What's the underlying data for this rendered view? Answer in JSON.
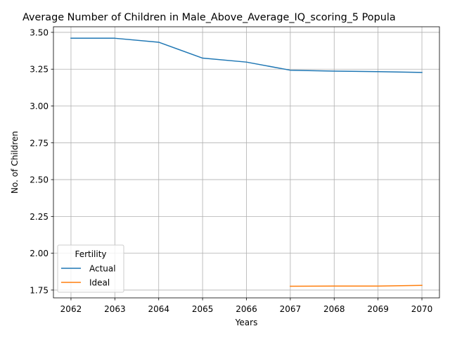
{
  "chart_data": {
    "type": "line",
    "title": "Average Number of Children in Male_Above_Average_IQ_scoring_5 Popula",
    "xlabel": "Years",
    "ylabel": "No. of Children",
    "x": [
      2062,
      2063,
      2064,
      2065,
      2066,
      2067,
      2068,
      2069,
      2070
    ],
    "x_ticks": [
      "2062",
      "2063",
      "2064",
      "2065",
      "2066",
      "2067",
      "2068",
      "2069",
      "2070"
    ],
    "y_ticks": [
      "1.75",
      "2.00",
      "2.25",
      "2.50",
      "2.75",
      "3.00",
      "3.25",
      "3.50"
    ],
    "xlim": [
      2061.6,
      2070.4
    ],
    "ylim": [
      1.697,
      3.538
    ],
    "grid": true,
    "legend": {
      "title": "Fertility",
      "placement": "lower-left"
    },
    "series": [
      {
        "name": "Actual",
        "color": "#1f77b4",
        "values": [
          3.46,
          3.46,
          3.433,
          3.325,
          3.298,
          3.243,
          3.237,
          3.233,
          3.228
        ]
      },
      {
        "name": "Ideal",
        "color": "#ff7f0e",
        "values": [
          null,
          null,
          null,
          null,
          null,
          1.776,
          1.777,
          1.777,
          1.782
        ]
      }
    ]
  }
}
